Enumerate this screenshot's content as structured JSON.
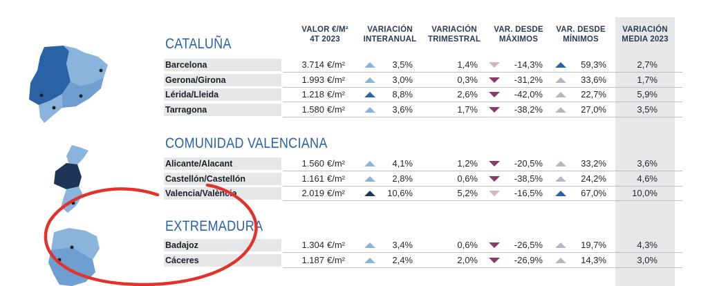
{
  "headers": {
    "valor": [
      "VALOR €/M²",
      "4T 2023"
    ],
    "interanual": [
      "VARIACIÓN",
      "INTERANUAL"
    ],
    "trimestral": [
      "VARIACIÓN",
      "TRIMESTRAL"
    ],
    "maximos": [
      "VAR. DESDE",
      "MÁXIMOS"
    ],
    "minimos": [
      "VAR. DESDE",
      "MÍNIMOS"
    ],
    "media": [
      "VARIACIÓN",
      "MEDIA 2023"
    ]
  },
  "unit": "€/m²",
  "colors": {
    "light_up": "#8ab4dc",
    "dark_up": "#2a62a6",
    "navy_up": "#1d3557",
    "gray_up": "#b3b8c2",
    "down_purple": "#8a3a68",
    "down_light": "#d4b4c6",
    "annotation": "#e0332e"
  },
  "regions": [
    {
      "title": "CATALUÑA",
      "rows": [
        {
          "name": "Barcelona",
          "valor": "3.714",
          "interanual": "3,5%",
          "inter_icon": "up-light",
          "trimestral": "1,4%",
          "maximos": "-14,3%",
          "max_icon": "down-light",
          "minimos": "59,3%",
          "min_icon": "up-dark",
          "media": "2,7%"
        },
        {
          "name": "Gerona/Girona",
          "valor": "1.993",
          "interanual": "3,0%",
          "inter_icon": "up-light",
          "trimestral": "0,3%",
          "maximos": "-31,2%",
          "max_icon": "down",
          "minimos": "33,6%",
          "min_icon": "up-gray",
          "media": "1,7%"
        },
        {
          "name": "Lérida/Lleida",
          "valor": "1.218",
          "interanual": "8,8%",
          "inter_icon": "up-dark",
          "trimestral": "2,6%",
          "maximos": "-42,0%",
          "max_icon": "down",
          "minimos": "22,7%",
          "min_icon": "up-gray",
          "media": "5,9%"
        },
        {
          "name": "Tarragona",
          "valor": "1.580",
          "interanual": "3,6%",
          "inter_icon": "up-light",
          "trimestral": "1,7%",
          "maximos": "-38,2%",
          "max_icon": "down",
          "minimos": "27,0%",
          "min_icon": "up-gray",
          "media": "3,5%"
        }
      ]
    },
    {
      "title": "COMUNIDAD VALENCIANA",
      "rows": [
        {
          "name": "Alicante/Alacant",
          "valor": "1.560",
          "interanual": "4,1%",
          "inter_icon": "up-light",
          "trimestral": "1,2%",
          "maximos": "-20,5%",
          "max_icon": "down",
          "minimos": "33,2%",
          "min_icon": "up-gray",
          "media": "3,6%"
        },
        {
          "name": "Castellón/Castellón",
          "valor": "1.161",
          "interanual": "2,8%",
          "inter_icon": "up-light",
          "trimestral": "0,6%",
          "maximos": "-38,5%",
          "max_icon": "down",
          "minimos": "24,2%",
          "min_icon": "up-gray",
          "media": "4,6%"
        },
        {
          "name": "Valencia/València",
          "valor": "2.019",
          "interanual": "10,6%",
          "inter_icon": "up-navy",
          "trimestral": "5,2%",
          "maximos": "-16,5%",
          "max_icon": "down-light",
          "minimos": "67,0%",
          "min_icon": "up-dark",
          "media": "10,0%"
        }
      ]
    },
    {
      "title": "EXTREMADURA",
      "rows": [
        {
          "name": "Badajoz",
          "valor": "1.304",
          "interanual": "3,4%",
          "inter_icon": "up-light",
          "trimestral": "0,6%",
          "maximos": "-26,5%",
          "max_icon": "down",
          "minimos": "19,7%",
          "min_icon": "up-gray",
          "media": "4,3%"
        },
        {
          "name": "Cáceres",
          "valor": "1.187",
          "interanual": "2,4%",
          "inter_icon": "up-light",
          "trimestral": "2,0%",
          "maximos": "-26,9%",
          "max_icon": "down",
          "minimos": "14,3%",
          "min_icon": "up-gray",
          "media": "3,0%"
        }
      ]
    }
  ]
}
